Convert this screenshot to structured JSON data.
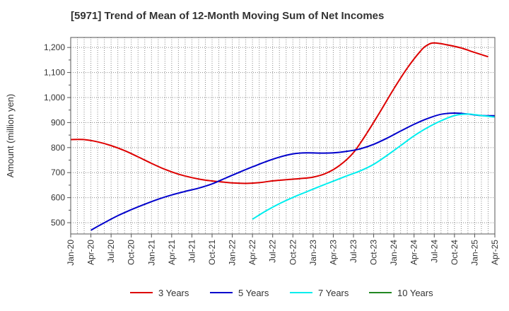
{
  "chart_data": {
    "type": "line",
    "title": "[5971]  Trend of Mean of 12-Month Moving Sum of Net Incomes",
    "xlabel": "",
    "ylabel": "Amount (million yen)",
    "x_ticks": [
      "Jan-20",
      "Apr-20",
      "Jul-20",
      "Oct-20",
      "Jan-21",
      "Apr-21",
      "Jul-21",
      "Oct-21",
      "Jan-22",
      "Apr-22",
      "Jul-22",
      "Oct-22",
      "Jan-23",
      "Apr-23",
      "Jul-23",
      "Oct-23",
      "Jan-24",
      "Apr-24",
      "Jul-24",
      "Oct-24",
      "Jan-25",
      "Apr-25"
    ],
    "y_ticks": [
      500,
      600,
      700,
      800,
      900,
      1000,
      1100,
      1200
    ],
    "y_tick_labels": [
      "500",
      "600",
      "700",
      "800",
      "900",
      "1,000",
      "1,100",
      "1,200"
    ],
    "xlim": [
      "2020-01",
      "2025-04"
    ],
    "ylim": [
      455,
      1240
    ],
    "grid": true,
    "legend_position": "bottom",
    "series": [
      {
        "name": "3 Years",
        "color": "#dd0000",
        "points": [
          [
            "2020-01",
            832
          ],
          [
            "2020-03",
            832
          ],
          [
            "2020-05",
            823
          ],
          [
            "2020-07",
            808
          ],
          [
            "2020-09",
            788
          ],
          [
            "2020-11",
            763
          ],
          [
            "2021-01",
            737
          ],
          [
            "2021-03",
            713
          ],
          [
            "2021-05",
            694
          ],
          [
            "2021-07",
            680
          ],
          [
            "2021-09",
            670
          ],
          [
            "2021-11",
            664
          ],
          [
            "2022-01",
            659
          ],
          [
            "2022-03",
            657
          ],
          [
            "2022-05",
            660
          ],
          [
            "2022-07",
            667
          ],
          [
            "2022-09",
            672
          ],
          [
            "2022-11",
            676
          ],
          [
            "2023-01",
            682
          ],
          [
            "2023-03",
            698
          ],
          [
            "2023-05",
            730
          ],
          [
            "2023-07",
            780
          ],
          [
            "2023-09",
            858
          ],
          [
            "2023-11",
            945
          ],
          [
            "2024-01",
            1035
          ],
          [
            "2024-03",
            1118
          ],
          [
            "2024-05",
            1187
          ],
          [
            "2024-06",
            1210
          ],
          [
            "2024-07",
            1218
          ],
          [
            "2024-09",
            1210
          ],
          [
            "2024-11",
            1198
          ],
          [
            "2025-01",
            1180
          ],
          [
            "2025-03",
            1163
          ]
        ]
      },
      {
        "name": "5 Years",
        "color": "#0000cc",
        "points": [
          [
            "2020-04",
            470
          ],
          [
            "2020-06",
            500
          ],
          [
            "2020-08",
            528
          ],
          [
            "2020-10",
            552
          ],
          [
            "2020-12",
            574
          ],
          [
            "2021-02",
            594
          ],
          [
            "2021-04",
            611
          ],
          [
            "2021-06",
            625
          ],
          [
            "2021-08",
            638
          ],
          [
            "2021-10",
            655
          ],
          [
            "2021-12",
            678
          ],
          [
            "2022-02",
            701
          ],
          [
            "2022-04",
            723
          ],
          [
            "2022-06",
            744
          ],
          [
            "2022-08",
            762
          ],
          [
            "2022-10",
            775
          ],
          [
            "2022-12",
            779
          ],
          [
            "2023-02",
            778
          ],
          [
            "2023-04",
            779
          ],
          [
            "2023-06",
            785
          ],
          [
            "2023-08",
            795
          ],
          [
            "2023-10",
            813
          ],
          [
            "2023-12",
            838
          ],
          [
            "2024-02",
            866
          ],
          [
            "2024-04",
            893
          ],
          [
            "2024-06",
            916
          ],
          [
            "2024-08",
            933
          ],
          [
            "2024-10",
            938
          ],
          [
            "2024-12",
            934
          ],
          [
            "2025-02",
            928
          ],
          [
            "2025-04",
            927
          ]
        ]
      },
      {
        "name": "7 Years",
        "color": "#00eeee",
        "points": [
          [
            "2022-04",
            514
          ],
          [
            "2022-06",
            547
          ],
          [
            "2022-08",
            576
          ],
          [
            "2022-10",
            601
          ],
          [
            "2022-12",
            623
          ],
          [
            "2023-02",
            645
          ],
          [
            "2023-04",
            666
          ],
          [
            "2023-06",
            687
          ],
          [
            "2023-08",
            707
          ],
          [
            "2023-10",
            733
          ],
          [
            "2023-12",
            769
          ],
          [
            "2024-02",
            808
          ],
          [
            "2024-04",
            847
          ],
          [
            "2024-06",
            880
          ],
          [
            "2024-08",
            907
          ],
          [
            "2024-10",
            928
          ],
          [
            "2024-12",
            934
          ],
          [
            "2025-02",
            928
          ],
          [
            "2025-04",
            922
          ]
        ]
      },
      {
        "name": "10 Years",
        "color": "#228822",
        "points": []
      }
    ]
  }
}
